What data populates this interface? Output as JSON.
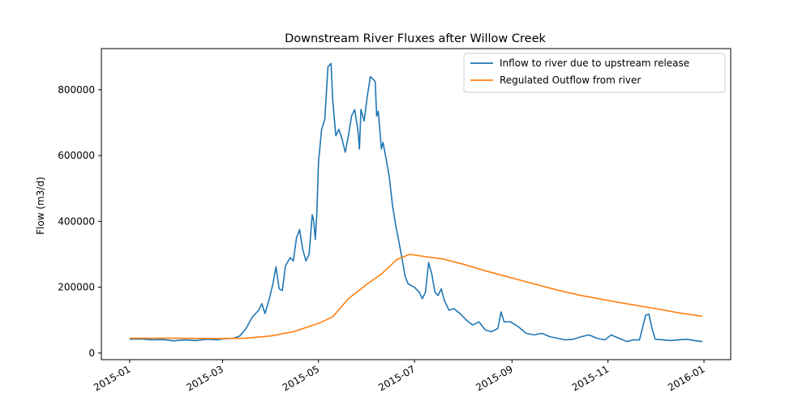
{
  "chart_data": {
    "type": "line",
    "title": "Downstream River Fluxes after Willow Creek",
    "xlabel": "",
    "ylabel": "Flow (m3/d)",
    "x_range": [
      "2015-01-01",
      "2015-12-31"
    ],
    "ylim": [
      -20000,
      925000
    ],
    "y_ticks": [
      0,
      200000,
      400000,
      600000,
      800000
    ],
    "y_tick_labels": [
      "0",
      "200000",
      "400000",
      "600000",
      "800000"
    ],
    "x_ticks": [
      "2015-01-01",
      "2015-03-01",
      "2015-05-01",
      "2015-07-01",
      "2015-09-01",
      "2015-11-01",
      "2016-01-01"
    ],
    "x_tick_labels": [
      "2015-01",
      "2015-03",
      "2015-05",
      "2015-07",
      "2015-09",
      "2015-11",
      "2016-01"
    ],
    "grid": false,
    "legend_position": "top-right",
    "series": [
      {
        "name": "Inflow to river due to upstream release",
        "color": "#1f77b4",
        "points": [
          [
            "2015-01-01",
            42000
          ],
          [
            "2015-01-08",
            43000
          ],
          [
            "2015-01-15",
            40000
          ],
          [
            "2015-01-22",
            41000
          ],
          [
            "2015-01-29",
            37000
          ],
          [
            "2015-02-05",
            40000
          ],
          [
            "2015-02-12",
            38000
          ],
          [
            "2015-02-19",
            42000
          ],
          [
            "2015-02-26",
            40000
          ],
          [
            "2015-03-01",
            43000
          ],
          [
            "2015-03-08",
            45000
          ],
          [
            "2015-03-12",
            52000
          ],
          [
            "2015-03-16",
            75000
          ],
          [
            "2015-03-20",
            110000
          ],
          [
            "2015-03-24",
            130000
          ],
          [
            "2015-03-26",
            150000
          ],
          [
            "2015-03-28",
            120000
          ],
          [
            "2015-03-31",
            170000
          ],
          [
            "2015-04-02",
            210000
          ],
          [
            "2015-04-04",
            262000
          ],
          [
            "2015-04-06",
            195000
          ],
          [
            "2015-04-08",
            190000
          ],
          [
            "2015-04-10",
            265000
          ],
          [
            "2015-04-13",
            290000
          ],
          [
            "2015-04-15",
            280000
          ],
          [
            "2015-04-17",
            350000
          ],
          [
            "2015-04-19",
            375000
          ],
          [
            "2015-04-21",
            315000
          ],
          [
            "2015-04-23",
            280000
          ],
          [
            "2015-04-25",
            300000
          ],
          [
            "2015-04-27",
            420000
          ],
          [
            "2015-04-28",
            400000
          ],
          [
            "2015-04-29",
            345000
          ],
          [
            "2015-04-30",
            430000
          ],
          [
            "2015-05-01",
            580000
          ],
          [
            "2015-05-03",
            680000
          ],
          [
            "2015-05-05",
            710000
          ],
          [
            "2015-05-07",
            870000
          ],
          [
            "2015-05-09",
            880000
          ],
          [
            "2015-05-10",
            770000
          ],
          [
            "2015-05-12",
            660000
          ],
          [
            "2015-05-14",
            680000
          ],
          [
            "2015-05-16",
            650000
          ],
          [
            "2015-05-18",
            610000
          ],
          [
            "2015-05-20",
            660000
          ],
          [
            "2015-05-22",
            720000
          ],
          [
            "2015-05-24",
            740000
          ],
          [
            "2015-05-26",
            680000
          ],
          [
            "2015-05-27",
            620000
          ],
          [
            "2015-05-28",
            740000
          ],
          [
            "2015-05-30",
            705000
          ],
          [
            "2015-06-01",
            780000
          ],
          [
            "2015-06-03",
            840000
          ],
          [
            "2015-06-06",
            825000
          ],
          [
            "2015-06-07",
            720000
          ],
          [
            "2015-06-08",
            735000
          ],
          [
            "2015-06-10",
            620000
          ],
          [
            "2015-06-11",
            640000
          ],
          [
            "2015-06-13",
            590000
          ],
          [
            "2015-06-15",
            535000
          ],
          [
            "2015-06-17",
            450000
          ],
          [
            "2015-06-19",
            390000
          ],
          [
            "2015-06-21",
            340000
          ],
          [
            "2015-06-23",
            290000
          ],
          [
            "2015-06-25",
            235000
          ],
          [
            "2015-06-27",
            210000
          ],
          [
            "2015-07-01",
            200000
          ],
          [
            "2015-07-04",
            185000
          ],
          [
            "2015-07-06",
            165000
          ],
          [
            "2015-07-08",
            185000
          ],
          [
            "2015-07-10",
            275000
          ],
          [
            "2015-07-12",
            240000
          ],
          [
            "2015-07-14",
            185000
          ],
          [
            "2015-07-16",
            175000
          ],
          [
            "2015-07-18",
            195000
          ],
          [
            "2015-07-20",
            160000
          ],
          [
            "2015-07-23",
            130000
          ],
          [
            "2015-07-26",
            135000
          ],
          [
            "2015-07-30",
            120000
          ],
          [
            "2015-08-03",
            100000
          ],
          [
            "2015-08-07",
            85000
          ],
          [
            "2015-08-11",
            95000
          ],
          [
            "2015-08-15",
            70000
          ],
          [
            "2015-08-19",
            65000
          ],
          [
            "2015-08-23",
            75000
          ],
          [
            "2015-08-25",
            125000
          ],
          [
            "2015-08-27",
            95000
          ],
          [
            "2015-08-31",
            95000
          ],
          [
            "2015-09-05",
            80000
          ],
          [
            "2015-09-10",
            60000
          ],
          [
            "2015-09-15",
            55000
          ],
          [
            "2015-09-20",
            60000
          ],
          [
            "2015-09-25",
            50000
          ],
          [
            "2015-09-30",
            45000
          ],
          [
            "2015-10-05",
            40000
          ],
          [
            "2015-10-10",
            42000
          ],
          [
            "2015-10-15",
            50000
          ],
          [
            "2015-10-20",
            55000
          ],
          [
            "2015-10-25",
            45000
          ],
          [
            "2015-10-30",
            40000
          ],
          [
            "2015-11-03",
            55000
          ],
          [
            "2015-11-08",
            45000
          ],
          [
            "2015-11-13",
            35000
          ],
          [
            "2015-11-17",
            40000
          ],
          [
            "2015-11-21",
            40000
          ],
          [
            "2015-11-25",
            115000
          ],
          [
            "2015-11-27",
            118000
          ],
          [
            "2015-11-29",
            75000
          ],
          [
            "2015-12-01",
            42000
          ],
          [
            "2015-12-06",
            40000
          ],
          [
            "2015-12-11",
            38000
          ],
          [
            "2015-12-16",
            40000
          ],
          [
            "2015-12-21",
            42000
          ],
          [
            "2015-12-26",
            38000
          ],
          [
            "2015-12-31",
            35000
          ]
        ]
      },
      {
        "name": "Regulated Outflow from river",
        "color": "#ff7f0e",
        "points": [
          [
            "2015-01-01",
            45000
          ],
          [
            "2015-02-01",
            45000
          ],
          [
            "2015-03-01",
            44000
          ],
          [
            "2015-03-15",
            45000
          ],
          [
            "2015-04-01",
            52000
          ],
          [
            "2015-04-15",
            65000
          ],
          [
            "2015-05-01",
            90000
          ],
          [
            "2015-05-10",
            110000
          ],
          [
            "2015-05-20",
            165000
          ],
          [
            "2015-06-01",
            210000
          ],
          [
            "2015-06-10",
            240000
          ],
          [
            "2015-06-20",
            285000
          ],
          [
            "2015-06-28",
            300000
          ],
          [
            "2015-07-05",
            295000
          ],
          [
            "2015-07-20",
            285000
          ],
          [
            "2015-08-01",
            270000
          ],
          [
            "2015-08-15",
            250000
          ],
          [
            "2015-09-01",
            228000
          ],
          [
            "2015-09-15",
            210000
          ],
          [
            "2015-10-01",
            190000
          ],
          [
            "2015-10-15",
            175000
          ],
          [
            "2015-11-01",
            160000
          ],
          [
            "2015-11-15",
            148000
          ],
          [
            "2015-12-01",
            135000
          ],
          [
            "2015-12-15",
            123000
          ],
          [
            "2015-12-31",
            112000
          ]
        ]
      }
    ]
  }
}
